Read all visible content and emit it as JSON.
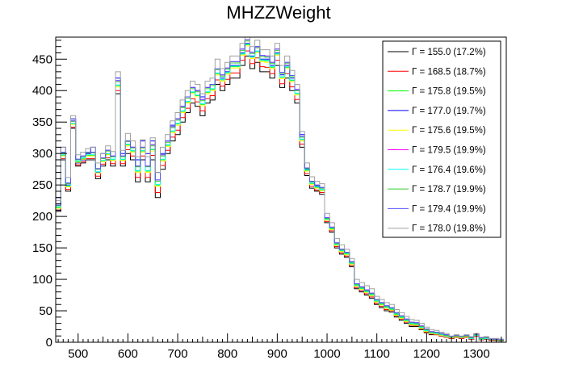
{
  "chart_data": {
    "type": "line",
    "title": "MHZZWeight",
    "xlabel": "",
    "ylabel": "",
    "xlim": [
      455,
      1360
    ],
    "ylim": [
      0,
      485
    ],
    "x_ticks": [
      500,
      600,
      700,
      800,
      900,
      1000,
      1100,
      1200,
      1300
    ],
    "y_ticks": [
      0,
      50,
      100,
      150,
      200,
      250,
      300,
      350,
      400,
      450
    ],
    "grid": false,
    "legend_position": "top-right",
    "legend_symbol": "Γ",
    "bin_width": 10,
    "x": [
      460,
      470,
      480,
      490,
      500,
      510,
      520,
      530,
      540,
      550,
      560,
      570,
      580,
      590,
      600,
      610,
      620,
      630,
      640,
      650,
      660,
      670,
      680,
      690,
      700,
      710,
      720,
      730,
      740,
      750,
      760,
      770,
      780,
      790,
      800,
      810,
      820,
      830,
      840,
      850,
      860,
      870,
      880,
      890,
      900,
      910,
      920,
      930,
      940,
      950,
      960,
      970,
      980,
      990,
      1000,
      1010,
      1020,
      1030,
      1040,
      1050,
      1060,
      1070,
      1080,
      1090,
      1100,
      1110,
      1120,
      1130,
      1140,
      1150,
      1160,
      1170,
      1180,
      1190,
      1200,
      1210,
      1220,
      1230,
      1240,
      1250,
      1260,
      1270,
      1280,
      1290,
      1300,
      1310,
      1320,
      1330,
      1340,
      1350
    ],
    "series": [
      {
        "name": "Γ = 155.0 (17.2%)",
        "color": "#000000",
        "values": [
          208,
          290,
          240,
          340,
          280,
          285,
          290,
          290,
          260,
          280,
          290,
          280,
          395,
          280,
          300,
          290,
          255,
          290,
          255,
          290,
          230,
          275,
          300,
          320,
          330,
          350,
          365,
          380,
          375,
          360,
          380,
          385,
          410,
          400,
          410,
          420,
          420,
          440,
          455,
          435,
          445,
          430,
          430,
          420,
          440,
          405,
          420,
          400,
          380,
          310,
          265,
          245,
          240,
          235,
          190,
          175,
          150,
          140,
          135,
          120,
          85,
          80,
          75,
          70,
          60,
          55,
          50,
          48,
          40,
          35,
          30,
          25,
          25,
          20,
          15,
          12,
          12,
          10,
          8,
          6,
          8,
          6,
          8,
          5,
          10,
          4,
          5,
          3,
          3,
          2
        ]
      },
      {
        "name": "Γ = 168.5 (18.7%)",
        "color": "#ff0000",
        "values": [
          210,
          292,
          243,
          342,
          282,
          287,
          292,
          292,
          264,
          283,
          293,
          284,
          400,
          284,
          306,
          296,
          262,
          296,
          262,
          297,
          238,
          281,
          305,
          326,
          337,
          357,
          372,
          387,
          382,
          368,
          387,
          392,
          417,
          407,
          418,
          428,
          428,
          448,
          463,
          443,
          452,
          438,
          437,
          427,
          448,
          411,
          427,
          406,
          386,
          315,
          268,
          248,
          242,
          238,
          192,
          177,
          152,
          142,
          137,
          122,
          87,
          82,
          77,
          72,
          62,
          57,
          52,
          50,
          42,
          37,
          32,
          27,
          26,
          21,
          16,
          13,
          12,
          10,
          8,
          6,
          8,
          6,
          8,
          5,
          10,
          4,
          5,
          3,
          3,
          2
        ]
      },
      {
        "name": "Γ = 175.8 (19.5%)",
        "color": "#00ff00",
        "values": [
          214,
          297,
          248,
          347,
          287,
          292,
          297,
          297,
          270,
          288,
          299,
          290,
          408,
          290,
          314,
          304,
          272,
          304,
          272,
          306,
          250,
          290,
          313,
          335,
          347,
          367,
          382,
          397,
          392,
          378,
          397,
          402,
          427,
          417,
          428,
          438,
          438,
          458,
          473,
          453,
          462,
          448,
          447,
          437,
          458,
          421,
          437,
          416,
          395,
          322,
          273,
          252,
          246,
          242,
          195,
          180,
          155,
          145,
          140,
          125,
          90,
          85,
          80,
          75,
          65,
          60,
          55,
          52,
          44,
          39,
          34,
          29,
          28,
          23,
          18,
          15,
          14,
          12,
          10,
          7,
          9,
          7,
          9,
          6,
          11,
          5,
          6,
          4,
          4,
          3
        ]
      },
      {
        "name": "Γ = 177.0 (19.7%)",
        "color": "#0000ff",
        "values": [
          230,
          310,
          250,
          355,
          285,
          290,
          300,
          310,
          270,
          300,
          305,
          295,
          420,
          300,
          320,
          310,
          290,
          320,
          300,
          320,
          270,
          300,
          320,
          345,
          355,
          375,
          390,
          405,
          400,
          390,
          405,
          410,
          435,
          420,
          430,
          440,
          440,
          460,
          475,
          455,
          470,
          450,
          450,
          440,
          460,
          425,
          440,
          420,
          400,
          330,
          275,
          255,
          248,
          245,
          198,
          182,
          158,
          148,
          143,
          128,
          93,
          88,
          83,
          78,
          68,
          62,
          57,
          54,
          46,
          41,
          36,
          31,
          30,
          25,
          20,
          16,
          15,
          13,
          11,
          8,
          10,
          8,
          10,
          7,
          12,
          6,
          7,
          4,
          4,
          3
        ]
      },
      {
        "name": "Γ = 175.6 (19.5%)",
        "color": "#ffff00",
        "values": [
          213,
          296,
          247,
          346,
          286,
          291,
          296,
          296,
          269,
          287,
          298,
          289,
          406,
          289,
          312,
          302,
          270,
          302,
          270,
          304,
          248,
          288,
          311,
          333,
          345,
          365,
          380,
          395,
          390,
          376,
          395,
          400,
          425,
          415,
          426,
          436,
          436,
          456,
          471,
          451,
          460,
          446,
          445,
          435,
          456,
          419,
          435,
          414,
          393,
          320,
          272,
          251,
          245,
          241,
          194,
          179,
          154,
          144,
          139,
          124,
          89,
          84,
          79,
          74,
          64,
          59,
          54,
          51,
          43,
          38,
          33,
          28,
          27,
          22,
          17,
          14,
          13,
          11,
          9,
          7,
          9,
          7,
          9,
          6,
          11,
          5,
          6,
          4,
          4,
          3
        ]
      },
      {
        "name": "Γ = 179.5 (19.9%)",
        "color": "#ff00ff",
        "values": [
          218,
          302,
          253,
          352,
          291,
          296,
          302,
          302,
          276,
          293,
          305,
          296,
          416,
          296,
          320,
          310,
          280,
          310,
          280,
          314,
          258,
          298,
          320,
          343,
          355,
          375,
          390,
          405,
          400,
          386,
          405,
          410,
          435,
          425,
          436,
          446,
          446,
          466,
          481,
          461,
          470,
          456,
          455,
          445,
          466,
          429,
          445,
          424,
          402,
          327,
          277,
          256,
          250,
          246,
          198,
          183,
          158,
          148,
          143,
          128,
          93,
          88,
          83,
          78,
          68,
          63,
          58,
          55,
          47,
          42,
          37,
          32,
          31,
          26,
          21,
          17,
          16,
          14,
          12,
          9,
          11,
          9,
          11,
          8,
          13,
          7,
          8,
          5,
          5,
          4
        ]
      },
      {
        "name": "Γ = 176.4 (19.6%)",
        "color": "#00ffff",
        "values": [
          215,
          298,
          249,
          348,
          288,
          293,
          298,
          298,
          271,
          289,
          300,
          291,
          409,
          291,
          315,
          305,
          273,
          305,
          273,
          307,
          251,
          291,
          314,
          336,
          348,
          368,
          383,
          398,
          393,
          379,
          398,
          403,
          428,
          418,
          429,
          439,
          439,
          459,
          474,
          454,
          463,
          449,
          448,
          438,
          459,
          422,
          438,
          417,
          396,
          323,
          274,
          253,
          247,
          243,
          196,
          181,
          156,
          146,
          141,
          126,
          91,
          86,
          81,
          76,
          66,
          61,
          56,
          53,
          45,
          40,
          35,
          30,
          29,
          24,
          19,
          15,
          14,
          12,
          10,
          8,
          10,
          8,
          10,
          6,
          11,
          5,
          6,
          4,
          4,
          3
        ]
      },
      {
        "name": "Γ = 178.7 (19.9%)",
        "color": "#33cc33",
        "values": [
          217,
          301,
          252,
          351,
          290,
          295,
          301,
          301,
          275,
          292,
          304,
          295,
          414,
          295,
          319,
          309,
          279,
          309,
          279,
          312,
          256,
          296,
          318,
          341,
          353,
          373,
          388,
          403,
          398,
          384,
          403,
          408,
          433,
          423,
          434,
          444,
          444,
          464,
          479,
          459,
          468,
          454,
          453,
          443,
          464,
          427,
          443,
          422,
          400,
          326,
          276,
          255,
          249,
          245,
          197,
          182,
          157,
          147,
          142,
          127,
          92,
          87,
          82,
          77,
          67,
          62,
          57,
          54,
          46,
          41,
          36,
          31,
          30,
          25,
          20,
          16,
          15,
          13,
          11,
          8,
          10,
          8,
          10,
          7,
          12,
          6,
          7,
          4,
          4,
          3
        ]
      },
      {
        "name": "Γ = 179.4 (19.9%)",
        "color": "#5555ff",
        "values": [
          218,
          302,
          253,
          352,
          291,
          296,
          302,
          302,
          276,
          293,
          305,
          296,
          416,
          296,
          320,
          310,
          280,
          310,
          280,
          314,
          258,
          298,
          320,
          343,
          355,
          375,
          390,
          405,
          400,
          386,
          405,
          410,
          435,
          425,
          436,
          446,
          446,
          466,
          481,
          461,
          470,
          456,
          455,
          445,
          466,
          429,
          445,
          424,
          402,
          327,
          277,
          256,
          250,
          246,
          198,
          183,
          158,
          148,
          143,
          128,
          93,
          88,
          83,
          78,
          68,
          63,
          58,
          55,
          47,
          42,
          37,
          32,
          31,
          26,
          21,
          17,
          16,
          14,
          12,
          9,
          11,
          9,
          11,
          8,
          13,
          7,
          8,
          5,
          5,
          4
        ]
      },
      {
        "name": "Γ = 178.0 (19.8%)",
        "color": "#a0a0a0",
        "values": [
          225,
          310,
          262,
          360,
          298,
          302,
          308,
          310,
          285,
          300,
          312,
          303,
          430,
          305,
          332,
          320,
          295,
          322,
          295,
          325,
          270,
          310,
          330,
          352,
          365,
          385,
          400,
          415,
          410,
          395,
          415,
          420,
          450,
          435,
          445,
          455,
          455,
          475,
          490,
          470,
          480,
          465,
          465,
          455,
          475,
          440,
          455,
          432,
          410,
          335,
          285,
          263,
          256,
          252,
          205,
          190,
          165,
          155,
          148,
          133,
          100,
          95,
          90,
          85,
          73,
          68,
          63,
          60,
          52,
          47,
          41,
          36,
          35,
          30,
          24,
          20,
          19,
          16,
          14,
          10,
          12,
          10,
          12,
          9,
          14,
          8,
          9,
          6,
          6,
          5
        ]
      }
    ]
  }
}
